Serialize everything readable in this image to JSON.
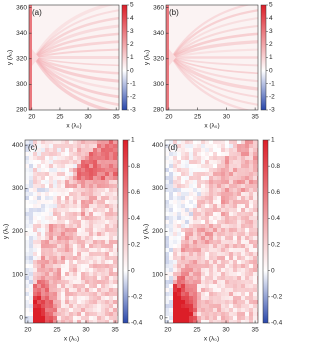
{
  "chart_data": [
    {
      "type": "heatmap",
      "label": "(a)",
      "xlabel": "x (λ₀)",
      "ylabel": "y (λ₀)",
      "xlim": [
        19.5,
        35.5
      ],
      "xticks": [
        20,
        25,
        30,
        35
      ],
      "ylim": [
        280,
        362
      ],
      "yticks": [
        280,
        300,
        320,
        340,
        360
      ],
      "clim": [
        -3,
        5
      ],
      "cticks": [
        5,
        4,
        3,
        2,
        1,
        0,
        -1,
        -2,
        -3
      ]
    },
    {
      "type": "heatmap",
      "label": "(b)",
      "xlabel": "x (λ₀)",
      "ylabel": "y (λ₀)",
      "xlim": [
        19.5,
        35.5
      ],
      "xticks": [
        20,
        25,
        30,
        35
      ],
      "ylim": [
        280,
        362
      ],
      "yticks": [
        280,
        300,
        320,
        340,
        360
      ],
      "clim": [
        -3,
        5
      ],
      "cticks": [
        5,
        4,
        3,
        2,
        1,
        0,
        -1,
        -2,
        -3
      ]
    },
    {
      "type": "heatmap",
      "label": "(c)",
      "xlabel": "x (λ₀)",
      "ylabel": "y (λ₀)",
      "xlim": [
        19.5,
        35.5
      ],
      "xticks": [
        20,
        25,
        30,
        35
      ],
      "ylim": [
        -12,
        412
      ],
      "yticks": [
        0,
        100,
        200,
        300,
        400
      ],
      "clim": [
        -0.4,
        1
      ],
      "cticks": [
        1,
        0.8,
        0.6,
        0.4,
        0.2,
        0,
        -0.2,
        -0.4
      ]
    },
    {
      "type": "heatmap",
      "label": "(d)",
      "xlabel": "x (λ₀)",
      "ylabel": "y (λ₀)",
      "xlim": [
        19.5,
        35.5
      ],
      "xticks": [
        20,
        25,
        30,
        35
      ],
      "ylim": [
        -12,
        412
      ],
      "yticks": [
        0,
        100,
        200,
        300,
        400
      ],
      "clim": [
        -0.4,
        1
      ],
      "cticks": [
        1,
        0.8,
        0.6,
        0.4,
        0.2,
        0,
        -0.2,
        -0.4
      ]
    }
  ]
}
